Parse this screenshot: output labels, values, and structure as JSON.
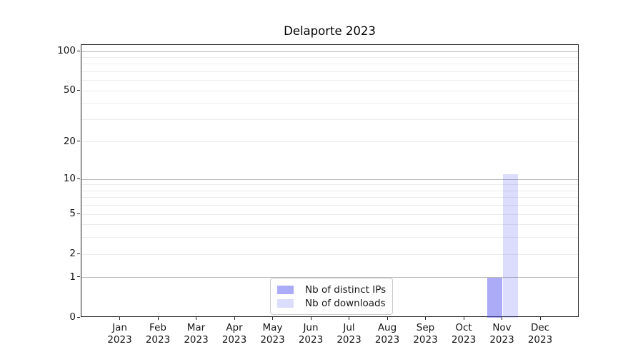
{
  "title": "Delaporte 2023",
  "chart_data": {
    "type": "bar",
    "title": "Delaporte 2023",
    "categories": [
      "Jan",
      "Feb",
      "Mar",
      "Apr",
      "May",
      "Jun",
      "Jul",
      "Aug",
      "Sep",
      "Oct",
      "Nov",
      "Dec"
    ],
    "category_year": "2023",
    "series": [
      {
        "name": "Nb of distinct IPs",
        "color": "rgba(68,68,238,0.45)",
        "approx_hex": "#aaaaf6",
        "values": [
          0,
          0,
          0,
          0,
          0,
          0,
          0,
          0,
          0,
          0,
          1,
          0
        ]
      },
      {
        "name": "Nb of downloads",
        "color": "rgba(68,68,238,0.19)",
        "approx_hex": "#dcdcf8",
        "values": [
          0,
          0,
          0,
          0,
          0,
          0,
          0,
          0,
          0,
          0,
          11,
          0
        ]
      }
    ],
    "xlabel": "",
    "ylabel": "",
    "y_scale": "log10(1+y)",
    "y_ticks": [
      0,
      1,
      2,
      5,
      10,
      20,
      50,
      100
    ],
    "y_major_gridlines": [
      1,
      10,
      100
    ],
    "y_minor_gridlines": [
      2,
      3,
      4,
      5,
      6,
      7,
      8,
      9,
      20,
      30,
      40,
      50,
      60,
      70,
      80,
      90
    ],
    "ylim": [
      0,
      112
    ],
    "grid": true,
    "legend_position": "lower center"
  },
  "legend": {
    "items": [
      {
        "label": "Nb of distinct IPs"
      },
      {
        "label": "Nb of downloads"
      }
    ]
  }
}
